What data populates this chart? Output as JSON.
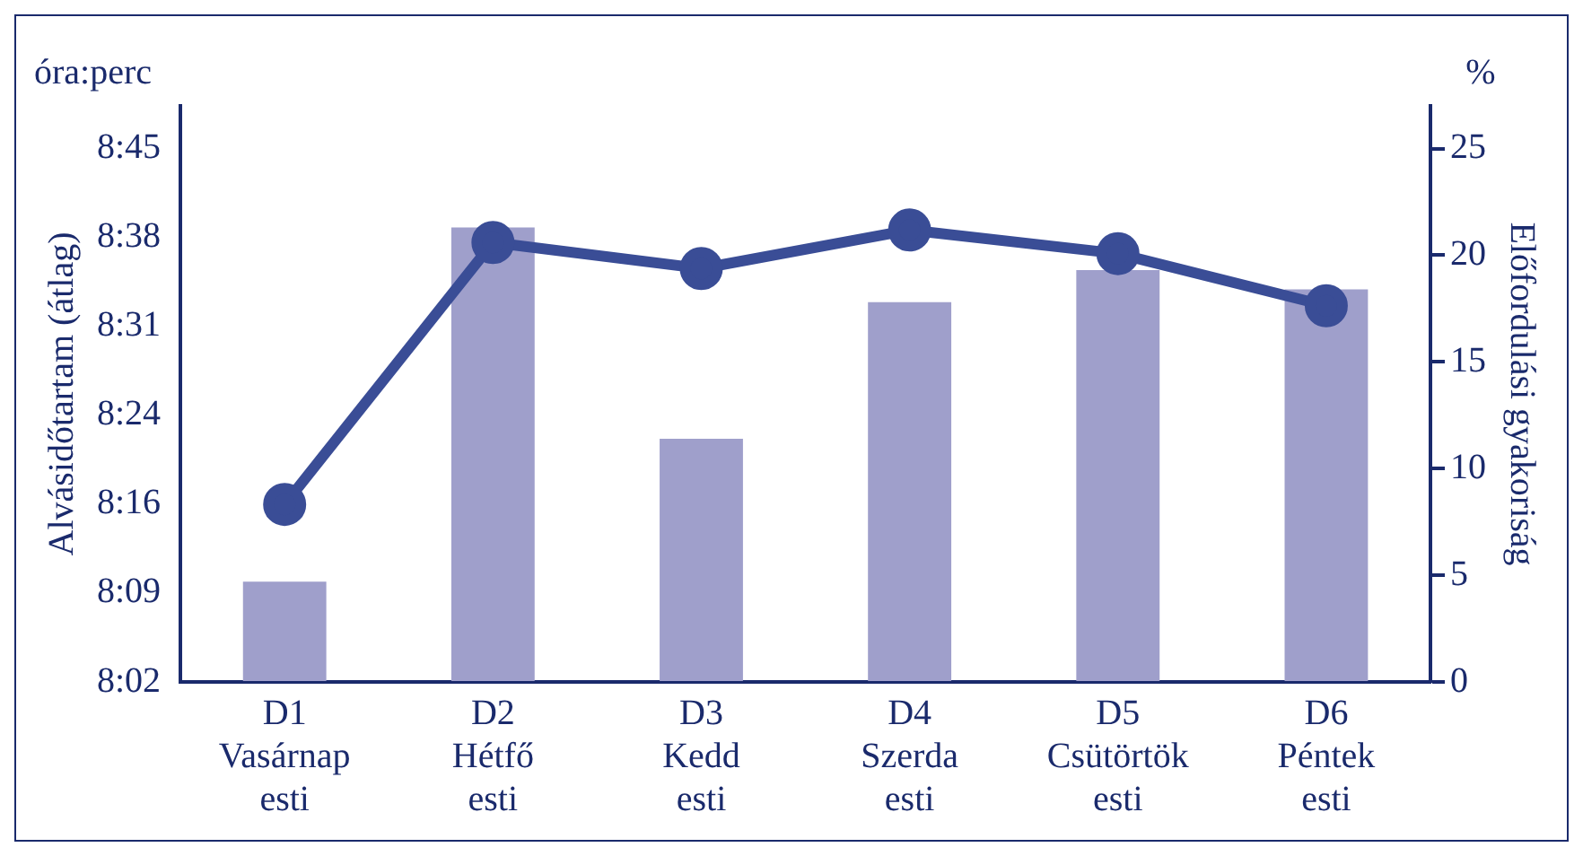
{
  "chart_data": {
    "type": "bar",
    "categories": [
      "D1\nVasárnap\nesti",
      "D2\nHétfő\nesti",
      "D3\nKedd\nesti",
      "D4\nSzerda\nesti",
      "D5\nCsütörtök\nesti",
      "D6\nPéntek\nesti"
    ],
    "ylabel": "Alvásidőtartam (átlag)",
    "y2label": "Előfordulási gyakoriság",
    "annotations": [
      "óra:perc",
      "%"
    ],
    "series": [
      {
        "axis": "y2",
        "color": "#9f9fcb",
        "values": [
          4.7,
          21.3,
          11.4,
          17.8,
          19.3,
          18.4
        ]
      },
      {
        "type": "line",
        "axis": "y",
        "color": "#3a4d96",
        "marker": "circle",
        "values": [
          496.3,
          517.4,
          515.3,
          518.4,
          516.5,
          512.3
        ]
      }
    ],
    "ylim": [
      482,
      528.4
    ],
    "yticks": [
      {
        "value": 482,
        "label": "8:02"
      },
      {
        "value": 489.17,
        "label": "8:09"
      },
      {
        "value": 496.33,
        "label": "8:16"
      },
      {
        "value": 503.5,
        "label": "8:24"
      },
      {
        "value": 510.67,
        "label": "8:31"
      },
      {
        "value": 517.83,
        "label": "8:38"
      },
      {
        "value": 525,
        "label": "8:45"
      }
    ],
    "y2lim": [
      0,
      27
    ],
    "y2ticks": [
      0,
      5,
      10,
      15,
      20,
      25
    ],
    "grid": false,
    "legend": false
  }
}
